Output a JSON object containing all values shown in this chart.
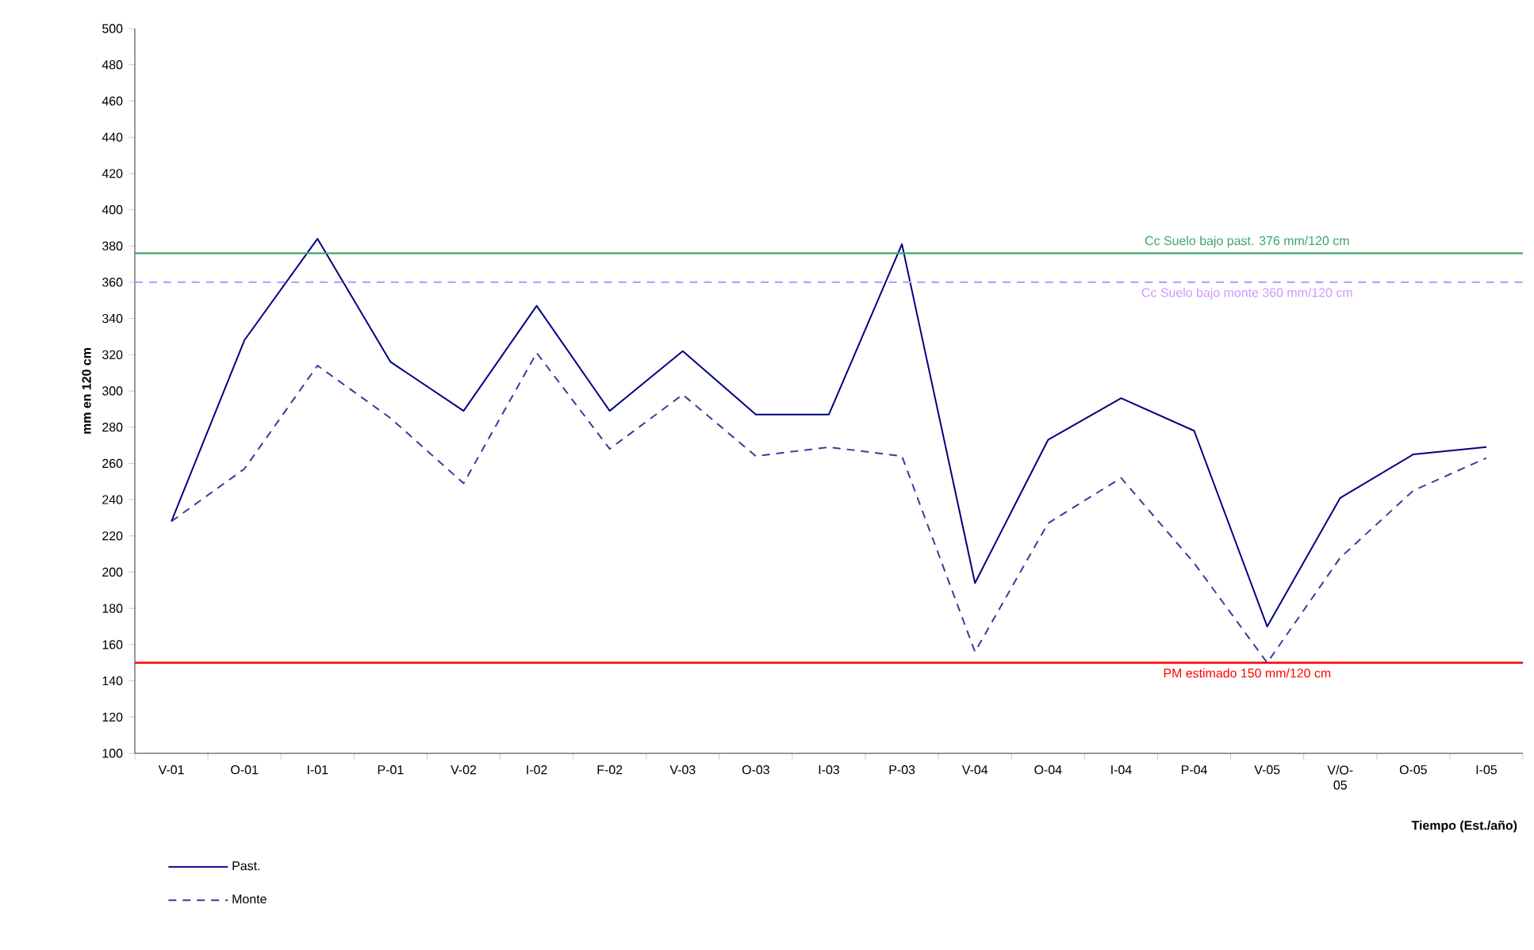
{
  "chart_data": {
    "type": "line",
    "ylabel": "mm en 120 cm",
    "xlabel": "Tiempo (Est./año)",
    "categories": [
      "V-01",
      "O-01",
      "I-01",
      "P-01",
      "V-02",
      "I-02",
      "F-02",
      "V-03",
      "O-03",
      "I-03",
      "P-03",
      "V-04",
      "O-04",
      "I-04",
      "P-04",
      "V-05",
      "V/O-05",
      "O-05",
      "I-05"
    ],
    "series": [
      {
        "name": "Past.",
        "color": "#000080",
        "line_style": "solid",
        "values": [
          228,
          328,
          384,
          316,
          289,
          347,
          289,
          322,
          287,
          287,
          381,
          194,
          273,
          296,
          278,
          170,
          241,
          265,
          269
        ]
      },
      {
        "name": "Monte",
        "color": "#3a3a9c",
        "line_style": "dashed",
        "values": [
          228,
          257,
          314,
          285,
          249,
          321,
          268,
          298,
          264,
          269,
          264,
          156,
          227,
          252,
          205,
          150,
          208,
          245,
          263
        ]
      }
    ],
    "ylim": [
      100,
      500
    ],
    "yticks": [
      100,
      120,
      140,
      160,
      180,
      200,
      220,
      240,
      260,
      280,
      300,
      320,
      340,
      360,
      380,
      400,
      420,
      440,
      460,
      480,
      500
    ],
    "ref_lines": [
      {
        "axis": "y",
        "value": 376,
        "label": "Cc Suelo bajo past. 376 mm/120 cm",
        "color": "#3ca66a",
        "line_style": "solid"
      },
      {
        "axis": "y",
        "value": 360,
        "label": "Cc Suelo bajo monte 360 mm/120 cm",
        "color": "#cc99ff",
        "line_style": "dashed"
      },
      {
        "axis": "y",
        "value": 150,
        "label": "PM estimado 150 mm/120 cm",
        "color": "#ff0000",
        "line_style": "solid"
      }
    ],
    "grid": false,
    "legend": "bottom left",
    "marker": "none"
  }
}
